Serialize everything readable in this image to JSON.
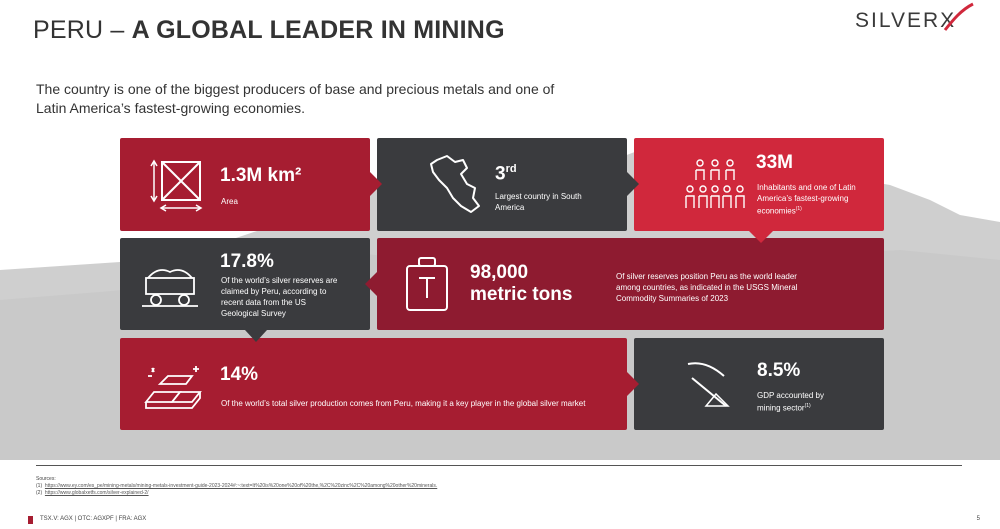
{
  "title": {
    "light": "PERU – ",
    "bold": "A GLOBAL LEADER IN MINING"
  },
  "logo": {
    "text": "SILVERX"
  },
  "intro": "The country is one of the biggest producers of base and precious metals and one of Latin America’s fastest-growing economies.",
  "tiles": {
    "area": {
      "value": "1.3M km²",
      "label": "Area",
      "icon": "area-icon"
    },
    "rank": {
      "value": "3",
      "sup": "rd",
      "label": "Largest country in South America",
      "icon": "peru-map-icon"
    },
    "inhabitants": {
      "value": "33M",
      "label": "Inhabitants and one of Latin America’s fastest-growing economies",
      "footnote": "(1)",
      "icon": "people-icon"
    },
    "reserves": {
      "value": "17.8%",
      "label": "Of the world’s silver reserves are claimed by Peru, according to recent data from the US Geological Survey",
      "icon": "mine-cart-icon"
    },
    "tons": {
      "value_line1": "98,000",
      "value_line2": "metric tons",
      "label": "Of silver reserves position Peru as the world leader among countries, as indicated in the USGS Mineral Commodity Summaries of 2023",
      "icon": "weight-icon"
    },
    "production": {
      "value": "14%",
      "label": "Of the world’s total silver production comes from Peru, making it a key player in the global silver market",
      "icon": "silver-bars-icon"
    },
    "gdp": {
      "value": "8.5%",
      "label": "GDP accounted by mining sector",
      "footnote": "(1)",
      "icon": "pickaxe-icon"
    }
  },
  "sources": {
    "heading": "Sources:",
    "items": [
      {
        "num": "(1)",
        "url": "https://www.ey.com/es_pe/mining-metals/mining-metals-investment-guide-2023-2024#:~:text=It%20is%20one%20of%20the,%2C%20zinc%2C%20among%20other%20minerals."
      },
      {
        "num": "(2)",
        "url": "https://www.globalxetfs.com/silver-explained-2/"
      }
    ]
  },
  "footer": {
    "tickers": "TSX.V: AGX  |  OTC: AGXPF  |  FRA: AGX",
    "page": "5"
  },
  "colors": {
    "red": "#a61d31",
    "bright_red": "#d0283c",
    "dark": "#3a3b3e",
    "maroon": "#8e1b30"
  }
}
